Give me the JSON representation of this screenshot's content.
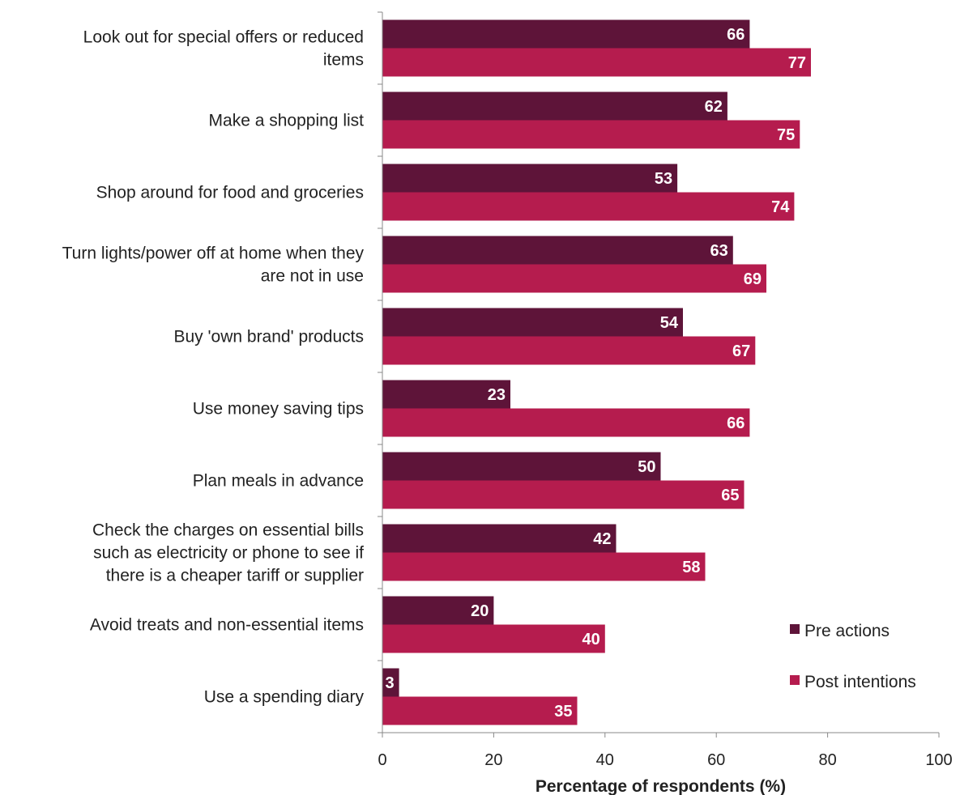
{
  "chart_data": {
    "type": "bar",
    "orientation": "horizontal",
    "categories": [
      [
        "Look out for special offers or reduced",
        "items"
      ],
      [
        "Make a shopping list"
      ],
      [
        "Shop around for food and groceries"
      ],
      [
        "Turn lights/power off at home when they",
        "are not in use"
      ],
      [
        "Buy 'own brand' products"
      ],
      [
        "Use money saving tips"
      ],
      [
        "Plan meals in advance"
      ],
      [
        "Check the charges on essential bills",
        "such as electricity or phone to see if",
        "there is a cheaper tariff or supplier"
      ],
      [
        "Avoid treats and non-essential items"
      ],
      [
        "Use a spending diary"
      ]
    ],
    "series": [
      {
        "name": "Pre actions",
        "color": "#5e1439",
        "values": [
          66,
          62,
          53,
          63,
          54,
          23,
          50,
          42,
          20,
          3
        ]
      },
      {
        "name": "Post intentions",
        "color": "#b51c4e",
        "values": [
          77,
          75,
          74,
          69,
          67,
          66,
          65,
          58,
          40,
          35
        ]
      }
    ],
    "data_labels": {
      "series_0": [
        "66",
        "62",
        "53",
        "63",
        "54",
        "23",
        "50",
        "42",
        "20",
        "3"
      ],
      "series_1": [
        "77",
        "75",
        "74",
        "69",
        "67",
        "66",
        "65",
        "58",
        "40",
        "35"
      ]
    },
    "xlabel": "Percentage of respondents (%)",
    "ylabel": "",
    "xlim": [
      0,
      100
    ],
    "xticks": [
      0,
      20,
      40,
      60,
      80,
      100
    ],
    "xtick_labels": [
      "0",
      "20",
      "40",
      "60",
      "80",
      "100"
    ],
    "grid": false,
    "legend": {
      "placement": "bottom-right",
      "entries": [
        "Pre actions",
        "Post intentions"
      ]
    }
  }
}
